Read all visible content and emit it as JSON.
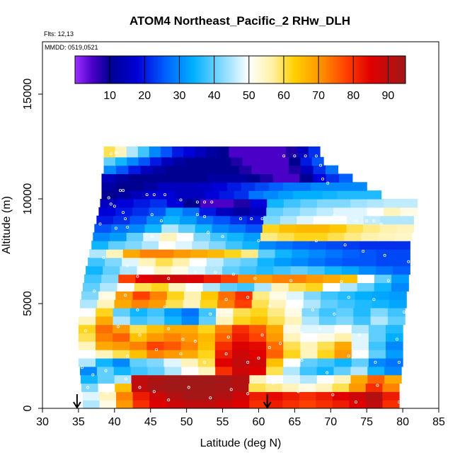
{
  "chart_data": {
    "type": "heatmap",
    "title": "ATOM4 Northeast_Pacific_2 RHw_DLH",
    "annotations": [
      "Flts: 12,13",
      "MMDD: 0519,0521"
    ],
    "xlabel": "Latitude (deg N)",
    "ylabel": "Altitude (m)",
    "xlim": [
      30,
      85
    ],
    "ylim": [
      0,
      17500
    ],
    "xticks": [
      30,
      35,
      40,
      45,
      50,
      55,
      60,
      65,
      70,
      75,
      80,
      85
    ],
    "yticks": [
      0,
      5000,
      10000,
      15000
    ],
    "colorbar": {
      "range": [
        0,
        95
      ],
      "ticks": [
        10,
        20,
        30,
        40,
        50,
        60,
        70,
        80,
        90
      ],
      "stops": [
        {
          "v": 0,
          "c": "#9b30ff"
        },
        {
          "v": 5,
          "c": "#4b00c8"
        },
        {
          "v": 10,
          "c": "#000090"
        },
        {
          "v": 18,
          "c": "#0000d8"
        },
        {
          "v": 26,
          "c": "#0060ff"
        },
        {
          "v": 34,
          "c": "#00b0ff"
        },
        {
          "v": 42,
          "c": "#80d8ff"
        },
        {
          "v": 50,
          "c": "#ffffff"
        },
        {
          "v": 57,
          "c": "#fff0a0"
        },
        {
          "v": 63,
          "c": "#ffd000"
        },
        {
          "v": 70,
          "c": "#ff9900"
        },
        {
          "v": 78,
          "c": "#ff4000"
        },
        {
          "v": 85,
          "c": "#e00000"
        },
        {
          "v": 95,
          "c": "#a01818"
        }
      ]
    },
    "arrows_x": [
      34.8,
      61.2
    ],
    "bands": [
      {
        "y0": 0,
        "y1": 400,
        "x0": 35.6,
        "x1": 79.5,
        "v": [
          45,
          52,
          70,
          80,
          85,
          88,
          90,
          90,
          88,
          85,
          80,
          82,
          80,
          78,
          80,
          82,
          85,
          90,
          80
        ]
      },
      {
        "y0": 400,
        "y1": 800,
        "x0": 35.6,
        "x1": 79.5,
        "v": [
          48,
          55,
          72,
          82,
          88,
          92,
          94,
          94,
          92,
          88,
          82,
          84,
          82,
          80,
          82,
          85,
          88,
          92,
          82
        ]
      },
      {
        "y0": 800,
        "y1": 1200,
        "x0": 35.4,
        "x1": 79.5,
        "v": [
          42,
          50,
          65,
          90,
          94,
          95,
          95,
          95,
          94,
          92,
          60,
          58,
          55,
          52,
          55,
          60,
          70,
          80,
          72
        ]
      },
      {
        "y0": 1200,
        "y1": 1600,
        "x0": 35.3,
        "x1": 79.8,
        "v": [
          35,
          40,
          45,
          90,
          93,
          95,
          95,
          95,
          94,
          92,
          55,
          50,
          48,
          45,
          50,
          55,
          68,
          75,
          68
        ]
      },
      {
        "y0": 1600,
        "y1": 2000,
        "x0": 35.2,
        "x1": 79.8,
        "v": [
          30,
          40,
          35,
          38,
          40,
          45,
          50,
          55,
          80,
          88,
          85,
          60,
          45,
          38,
          35,
          40,
          45,
          35,
          30
        ]
      },
      {
        "y0": 2000,
        "y1": 2400,
        "x0": 35.0,
        "x1": 80.0,
        "v": [
          45,
          35,
          30,
          40,
          42,
          48,
          55,
          60,
          85,
          90,
          88,
          65,
          50,
          40,
          38,
          35,
          40,
          30,
          28
        ]
      },
      {
        "y0": 2400,
        "y1": 2800,
        "x0": 35.0,
        "x1": 80.0,
        "v": [
          50,
          55,
          60,
          65,
          72,
          70,
          68,
          62,
          82,
          88,
          85,
          75,
          62,
          55,
          62,
          70,
          50,
          40,
          32
        ]
      },
      {
        "y0": 2800,
        "y1": 3200,
        "x0": 35.0,
        "x1": 80.0,
        "v": [
          55,
          68,
          70,
          72,
          78,
          76,
          72,
          65,
          80,
          86,
          84,
          74,
          60,
          55,
          60,
          68,
          48,
          38,
          30
        ]
      },
      {
        "y0": 3200,
        "y1": 3600,
        "x0": 35.0,
        "x1": 80.0,
        "v": [
          60,
          72,
          75,
          65,
          70,
          72,
          70,
          66,
          75,
          82,
          78,
          70,
          55,
          50,
          52,
          56,
          48,
          40,
          34
        ]
      },
      {
        "y0": 3600,
        "y1": 4000,
        "x0": 35.0,
        "x1": 80.0,
        "v": [
          62,
          74,
          70,
          60,
          65,
          68,
          68,
          62,
          72,
          80,
          76,
          68,
          52,
          48,
          48,
          50,
          45,
          40,
          36
        ]
      },
      {
        "y0": 4000,
        "y1": 4400,
        "x0": 35.0,
        "x1": 80.3,
        "v": [
          55,
          68,
          45,
          38,
          40,
          35,
          30,
          40,
          55,
          62,
          65,
          60,
          55,
          45,
          40,
          42,
          38,
          45,
          40
        ]
      },
      {
        "y0": 4400,
        "y1": 4800,
        "x0": 35.0,
        "x1": 80.3,
        "v": [
          50,
          62,
          40,
          35,
          38,
          32,
          28,
          38,
          52,
          60,
          62,
          58,
          52,
          42,
          38,
          40,
          36,
          42,
          38
        ]
      },
      {
        "y0": 4800,
        "y1": 5200,
        "x0": 35.2,
        "x1": 80.5,
        "v": [
          45,
          55,
          68,
          72,
          70,
          60,
          55,
          62,
          72,
          78,
          60,
          55,
          50,
          45,
          40,
          38,
          36,
          35,
          33
        ]
      },
      {
        "y0": 5200,
        "y1": 5600,
        "x0": 35.4,
        "x1": 80.5,
        "v": [
          42,
          52,
          70,
          78,
          72,
          62,
          56,
          64,
          74,
          80,
          58,
          52,
          48,
          42,
          38,
          36,
          34,
          33,
          32
        ]
      },
      {
        "y0": 5600,
        "y1": 6000,
        "x0": 35.6,
        "x1": 80.8,
        "v": [
          40,
          45,
          50,
          60,
          62,
          55,
          50,
          45,
          40,
          38,
          45,
          55,
          60,
          62,
          50,
          45,
          40,
          35,
          30
        ]
      },
      {
        "y0": 6000,
        "y1": 6400,
        "x0": 35.8,
        "x1": 80.8,
        "v": [
          38,
          42,
          78,
          85,
          88,
          88,
          86,
          82,
          78,
          72,
          70,
          72,
          72,
          70,
          68,
          65,
          50,
          40,
          32
        ]
      },
      {
        "y0": 6400,
        "y1": 6800,
        "x0": 36.0,
        "x1": 81.0,
        "v": [
          35,
          40,
          45,
          50,
          55,
          52,
          48,
          45,
          40,
          38,
          36,
          38,
          40,
          38,
          35,
          33,
          30,
          28,
          26
        ]
      },
      {
        "y0": 6800,
        "y1": 7200,
        "x0": 36.3,
        "x1": 81.0,
        "v": [
          38,
          42,
          48,
          55,
          60,
          56,
          50,
          46,
          42,
          40,
          35,
          32,
          30,
          28,
          26,
          25,
          25,
          24,
          24
        ]
      },
      {
        "y0": 7200,
        "y1": 7600,
        "x0": 36.5,
        "x1": 81.0,
        "v": [
          45,
          55,
          68,
          72,
          72,
          70,
          68,
          66,
          62,
          58,
          40,
          35,
          32,
          30,
          28,
          26,
          25,
          24,
          24
        ]
      },
      {
        "y0": 7600,
        "y1": 8000,
        "x0": 36.8,
        "x1": 81.0,
        "v": [
          35,
          40,
          42,
          45,
          50,
          48,
          45,
          42,
          38,
          35,
          30,
          28,
          26,
          25,
          24,
          23,
          22,
          22,
          22
        ]
      },
      {
        "y0": 8000,
        "y1": 8400,
        "x0": 37.0,
        "x1": 81.2,
        "v": [
          30,
          32,
          40,
          48,
          55,
          50,
          42,
          38,
          35,
          32,
          58,
          60,
          62,
          62,
          60,
          58,
          56,
          55,
          54
        ]
      },
      {
        "y0": 8400,
        "y1": 8800,
        "x0": 37.2,
        "x1": 81.5,
        "v": [
          25,
          28,
          30,
          35,
          45,
          40,
          35,
          30,
          28,
          25,
          62,
          65,
          66,
          66,
          64,
          60,
          58,
          56,
          55
        ]
      },
      {
        "y0": 8800,
        "y1": 9200,
        "x0": 37.5,
        "x1": 81.5,
        "v": [
          20,
          22,
          25,
          30,
          35,
          32,
          28,
          25,
          22,
          20,
          42,
          45,
          48,
          50,
          50,
          48,
          46,
          45,
          45
        ]
      },
      {
        "y0": 9200,
        "y1": 9600,
        "x0": 37.8,
        "x1": 82.0,
        "v": [
          18,
          20,
          22,
          25,
          32,
          28,
          20,
          15,
          12,
          15,
          40,
          42,
          44,
          46,
          48,
          48,
          50,
          55,
          52
        ]
      },
      {
        "y0": 9600,
        "y1": 10000,
        "x0": 38.0,
        "x1": 82.0,
        "v": [
          15,
          18,
          20,
          22,
          18,
          10,
          5,
          5,
          8,
          18,
          35,
          38,
          40,
          42,
          42,
          44,
          45,
          46,
          46
        ]
      },
      {
        "y0": 10000,
        "y1": 10400,
        "x0": 38.2,
        "x1": 77.0,
        "v": [
          10,
          12,
          15,
          18,
          18,
          15,
          15,
          18,
          20,
          22,
          28,
          30,
          32,
          34,
          34,
          35,
          36,
          36,
          36
        ]
      },
      {
        "y0": 10400,
        "y1": 10800,
        "x0": 38.2,
        "x1": 75.0,
        "v": [
          12,
          10,
          10,
          12,
          15,
          15,
          15,
          16,
          18,
          20,
          22,
          24,
          26,
          28,
          28,
          30,
          30,
          30,
          30
        ]
      },
      {
        "y0": 10800,
        "y1": 11200,
        "x0": 38.2,
        "x1": 73.0,
        "v": [
          15,
          12,
          10,
          10,
          10,
          10,
          10,
          10,
          12,
          12,
          12,
          10,
          8,
          5,
          5,
          10,
          18,
          22,
          26
        ]
      },
      {
        "y0": 11200,
        "y1": 11600,
        "x0": 38.5,
        "x1": 71.0,
        "v": [
          30,
          25,
          20,
          15,
          12,
          10,
          10,
          10,
          10,
          10,
          10,
          8,
          5,
          5,
          5,
          8,
          15,
          22,
          28
        ]
      },
      {
        "y0": 11600,
        "y1": 12000,
        "x0": 38.5,
        "x1": 69.0,
        "v": [
          40,
          35,
          30,
          25,
          20,
          15,
          12,
          10,
          10,
          10,
          10,
          8,
          5,
          5,
          5,
          5,
          10,
          20,
          25
        ]
      },
      {
        "y0": 12000,
        "y1": 12500,
        "x0": 38.5,
        "x1": 68.5,
        "v": [
          60,
          55,
          45,
          38,
          30,
          25,
          20,
          18,
          15,
          12,
          10,
          5,
          5,
          5,
          5,
          5,
          8,
          15,
          22
        ]
      }
    ],
    "points": [
      [
        38.2,
        12200
      ],
      [
        39.5,
        12150
      ],
      [
        40.2,
        12200
      ],
      [
        63.5,
        12050
      ],
      [
        65,
        12050
      ],
      [
        66.5,
        12050
      ],
      [
        68,
        12050
      ],
      [
        68.6,
        11600
      ],
      [
        68.9,
        10950
      ],
      [
        69.6,
        10750
      ],
      [
        40.8,
        10400
      ],
      [
        41.2,
        10400
      ],
      [
        44.5,
        10200
      ],
      [
        45.5,
        10200
      ],
      [
        47,
        10200
      ],
      [
        49.2,
        9950
      ],
      [
        51.5,
        9850
      ],
      [
        52.5,
        9850
      ],
      [
        53.5,
        9850
      ],
      [
        51.5,
        9250
      ],
      [
        52.5,
        9150
      ],
      [
        39.2,
        10050
      ],
      [
        39.5,
        9750
      ],
      [
        40,
        9650
      ],
      [
        41.2,
        9350
      ],
      [
        41.5,
        9050
      ],
      [
        41.8,
        8650
      ],
      [
        45.2,
        9250
      ],
      [
        46.5,
        8950
      ],
      [
        57.5,
        9050
      ],
      [
        59,
        9050
      ],
      [
        60.5,
        9050
      ],
      [
        70.5,
        9200
      ],
      [
        73.5,
        8950
      ],
      [
        75,
        8950
      ],
      [
        76,
        8950
      ],
      [
        77,
        8800
      ],
      [
        81,
        9250
      ],
      [
        38,
        8800
      ],
      [
        40.2,
        8600
      ],
      [
        45.2,
        8200
      ],
      [
        53,
        8400
      ],
      [
        55,
        8200
      ],
      [
        60,
        8000
      ],
      [
        68,
        8000
      ],
      [
        72,
        7800
      ],
      [
        74.5,
        7500
      ],
      [
        77.5,
        7300
      ],
      [
        80.8,
        7000
      ],
      [
        38.5,
        7200
      ],
      [
        41.8,
        6800
      ],
      [
        43.2,
        6300
      ],
      [
        47.5,
        6200
      ],
      [
        51.2,
        6500
      ],
      [
        54,
        6500
      ],
      [
        56.5,
        6400
      ],
      [
        59.5,
        6200
      ],
      [
        64.5,
        6100
      ],
      [
        71.5,
        6050
      ],
      [
        75,
        6300
      ],
      [
        78,
        6100
      ],
      [
        37.2,
        5600
      ],
      [
        41.5,
        5400
      ],
      [
        43.2,
        4700
      ],
      [
        47,
        4850
      ],
      [
        53.3,
        4500
      ],
      [
        55.5,
        5200
      ],
      [
        58.5,
        5300
      ],
      [
        61.5,
        4900
      ],
      [
        67.5,
        4700
      ],
      [
        70.5,
        4500
      ],
      [
        72.5,
        5300
      ],
      [
        76,
        5200
      ],
      [
        80.2,
        4600
      ],
      [
        36,
        3700
      ],
      [
        40.5,
        3900
      ],
      [
        43.5,
        3500
      ],
      [
        47.5,
        3800
      ],
      [
        49.5,
        3300
      ],
      [
        51.2,
        3200
      ],
      [
        55.8,
        3400
      ],
      [
        60.5,
        3500
      ],
      [
        63,
        3100
      ],
      [
        66,
        3600
      ],
      [
        68.5,
        3800
      ],
      [
        74,
        3500
      ],
      [
        79.2,
        3300
      ],
      [
        35.5,
        1950
      ],
      [
        37,
        1600
      ],
      [
        38.8,
        1800
      ],
      [
        41.8,
        2500
      ],
      [
        45.8,
        2800
      ],
      [
        49.2,
        2600
      ],
      [
        52.5,
        2200
      ],
      [
        55.5,
        2600
      ],
      [
        58.5,
        2200
      ],
      [
        60,
        2400
      ],
      [
        61.5,
        2900
      ],
      [
        66,
        2300
      ],
      [
        69.5,
        1700
      ],
      [
        72.5,
        2500
      ],
      [
        76.2,
        2200
      ],
      [
        79.5,
        2200
      ],
      [
        36.3,
        1000
      ],
      [
        39,
        700
      ],
      [
        41.6,
        1400
      ],
      [
        43.5,
        1000
      ],
      [
        45.5,
        800
      ],
      [
        47.5,
        400
      ],
      [
        50.3,
        1000
      ],
      [
        53.3,
        500
      ],
      [
        56.2,
        900
      ],
      [
        58.5,
        700
      ],
      [
        62,
        1200
      ],
      [
        65.5,
        800
      ],
      [
        70.3,
        650
      ],
      [
        73.5,
        300
      ],
      [
        76.5,
        1100
      ],
      [
        79.5,
        300
      ]
    ]
  }
}
